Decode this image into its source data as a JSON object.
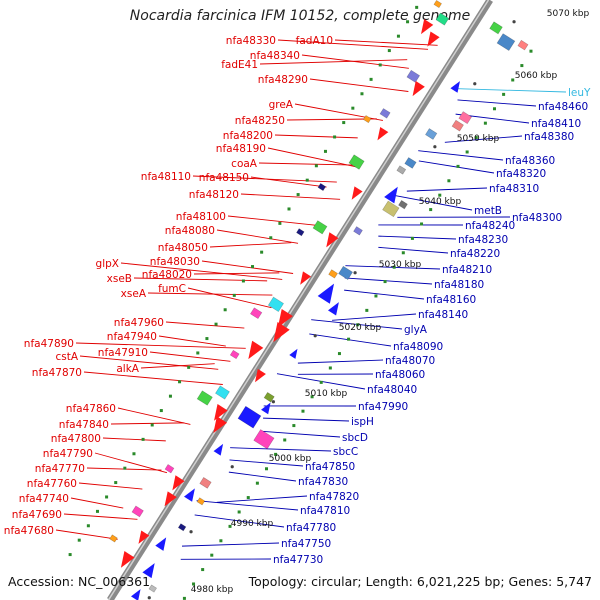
{
  "title": "Nocardia farcinica IFM 10152, complete genome",
  "footer": {
    "accession": "Accession: NC_006361",
    "summary": "Topology: circular; Length: 6,021,225 bp; Genes: 5,747"
  },
  "scale_labels": [
    "5070 kbp",
    "5060 kbp",
    "5050 kbp",
    "5040 kbp",
    "5030 kbp",
    "5020 kbp",
    "5010 kbp",
    "5000 kbp",
    "4990 kbp",
    "4980 kbp"
  ],
  "left_labels": [
    "fadA10",
    "nfa48330",
    "nfa48340",
    "fadE41",
    "nfa48290",
    "greA",
    "nfa48250",
    "nfa48200",
    "nfa48190",
    "coaA",
    "nfa48110",
    "nfa48150",
    "nfa48120",
    "nfa48100",
    "nfa48080",
    "nfa48050",
    "nfa48030",
    "glpX",
    "nfa48020",
    "xseB",
    "fumC",
    "xseA",
    "nfa47960",
    "nfa47940",
    "nfa47890",
    "nfa47910",
    "cstA",
    "alkA",
    "nfa47870",
    "nfa47860",
    "nfa47840",
    "nfa47800",
    "nfa47790",
    "nfa47770",
    "nfa47760",
    "nfa47740",
    "nfa47690",
    "nfa47680"
  ],
  "right_labels": [
    "leuY",
    "nfa48460",
    "nfa48410",
    "nfa48380",
    "nfa48360",
    "nfa48320",
    "nfa48310",
    "nfa48300",
    "metB",
    "nfa48240",
    "nfa48230",
    "nfa48220",
    "nfa48210",
    "nfa48180",
    "nfa48160",
    "nfa48140",
    "glyA",
    "nfa48090",
    "nfa48070",
    "nfa48060",
    "nfa48040",
    "nfa47990",
    "ispH",
    "sbcD",
    "sbcC",
    "nfa47850",
    "nfa47830",
    "nfa47820",
    "nfa47810",
    "nfa47780",
    "nfa47750",
    "nfa47730"
  ],
  "colors": {
    "backbone": "#8a8a8a",
    "left_label": "#e00000",
    "right_label": "#0000b0",
    "trna_label": "#33b8e0",
    "forward_gene": "#ff1a1a",
    "reverse_gene": "#1a1aff"
  }
}
